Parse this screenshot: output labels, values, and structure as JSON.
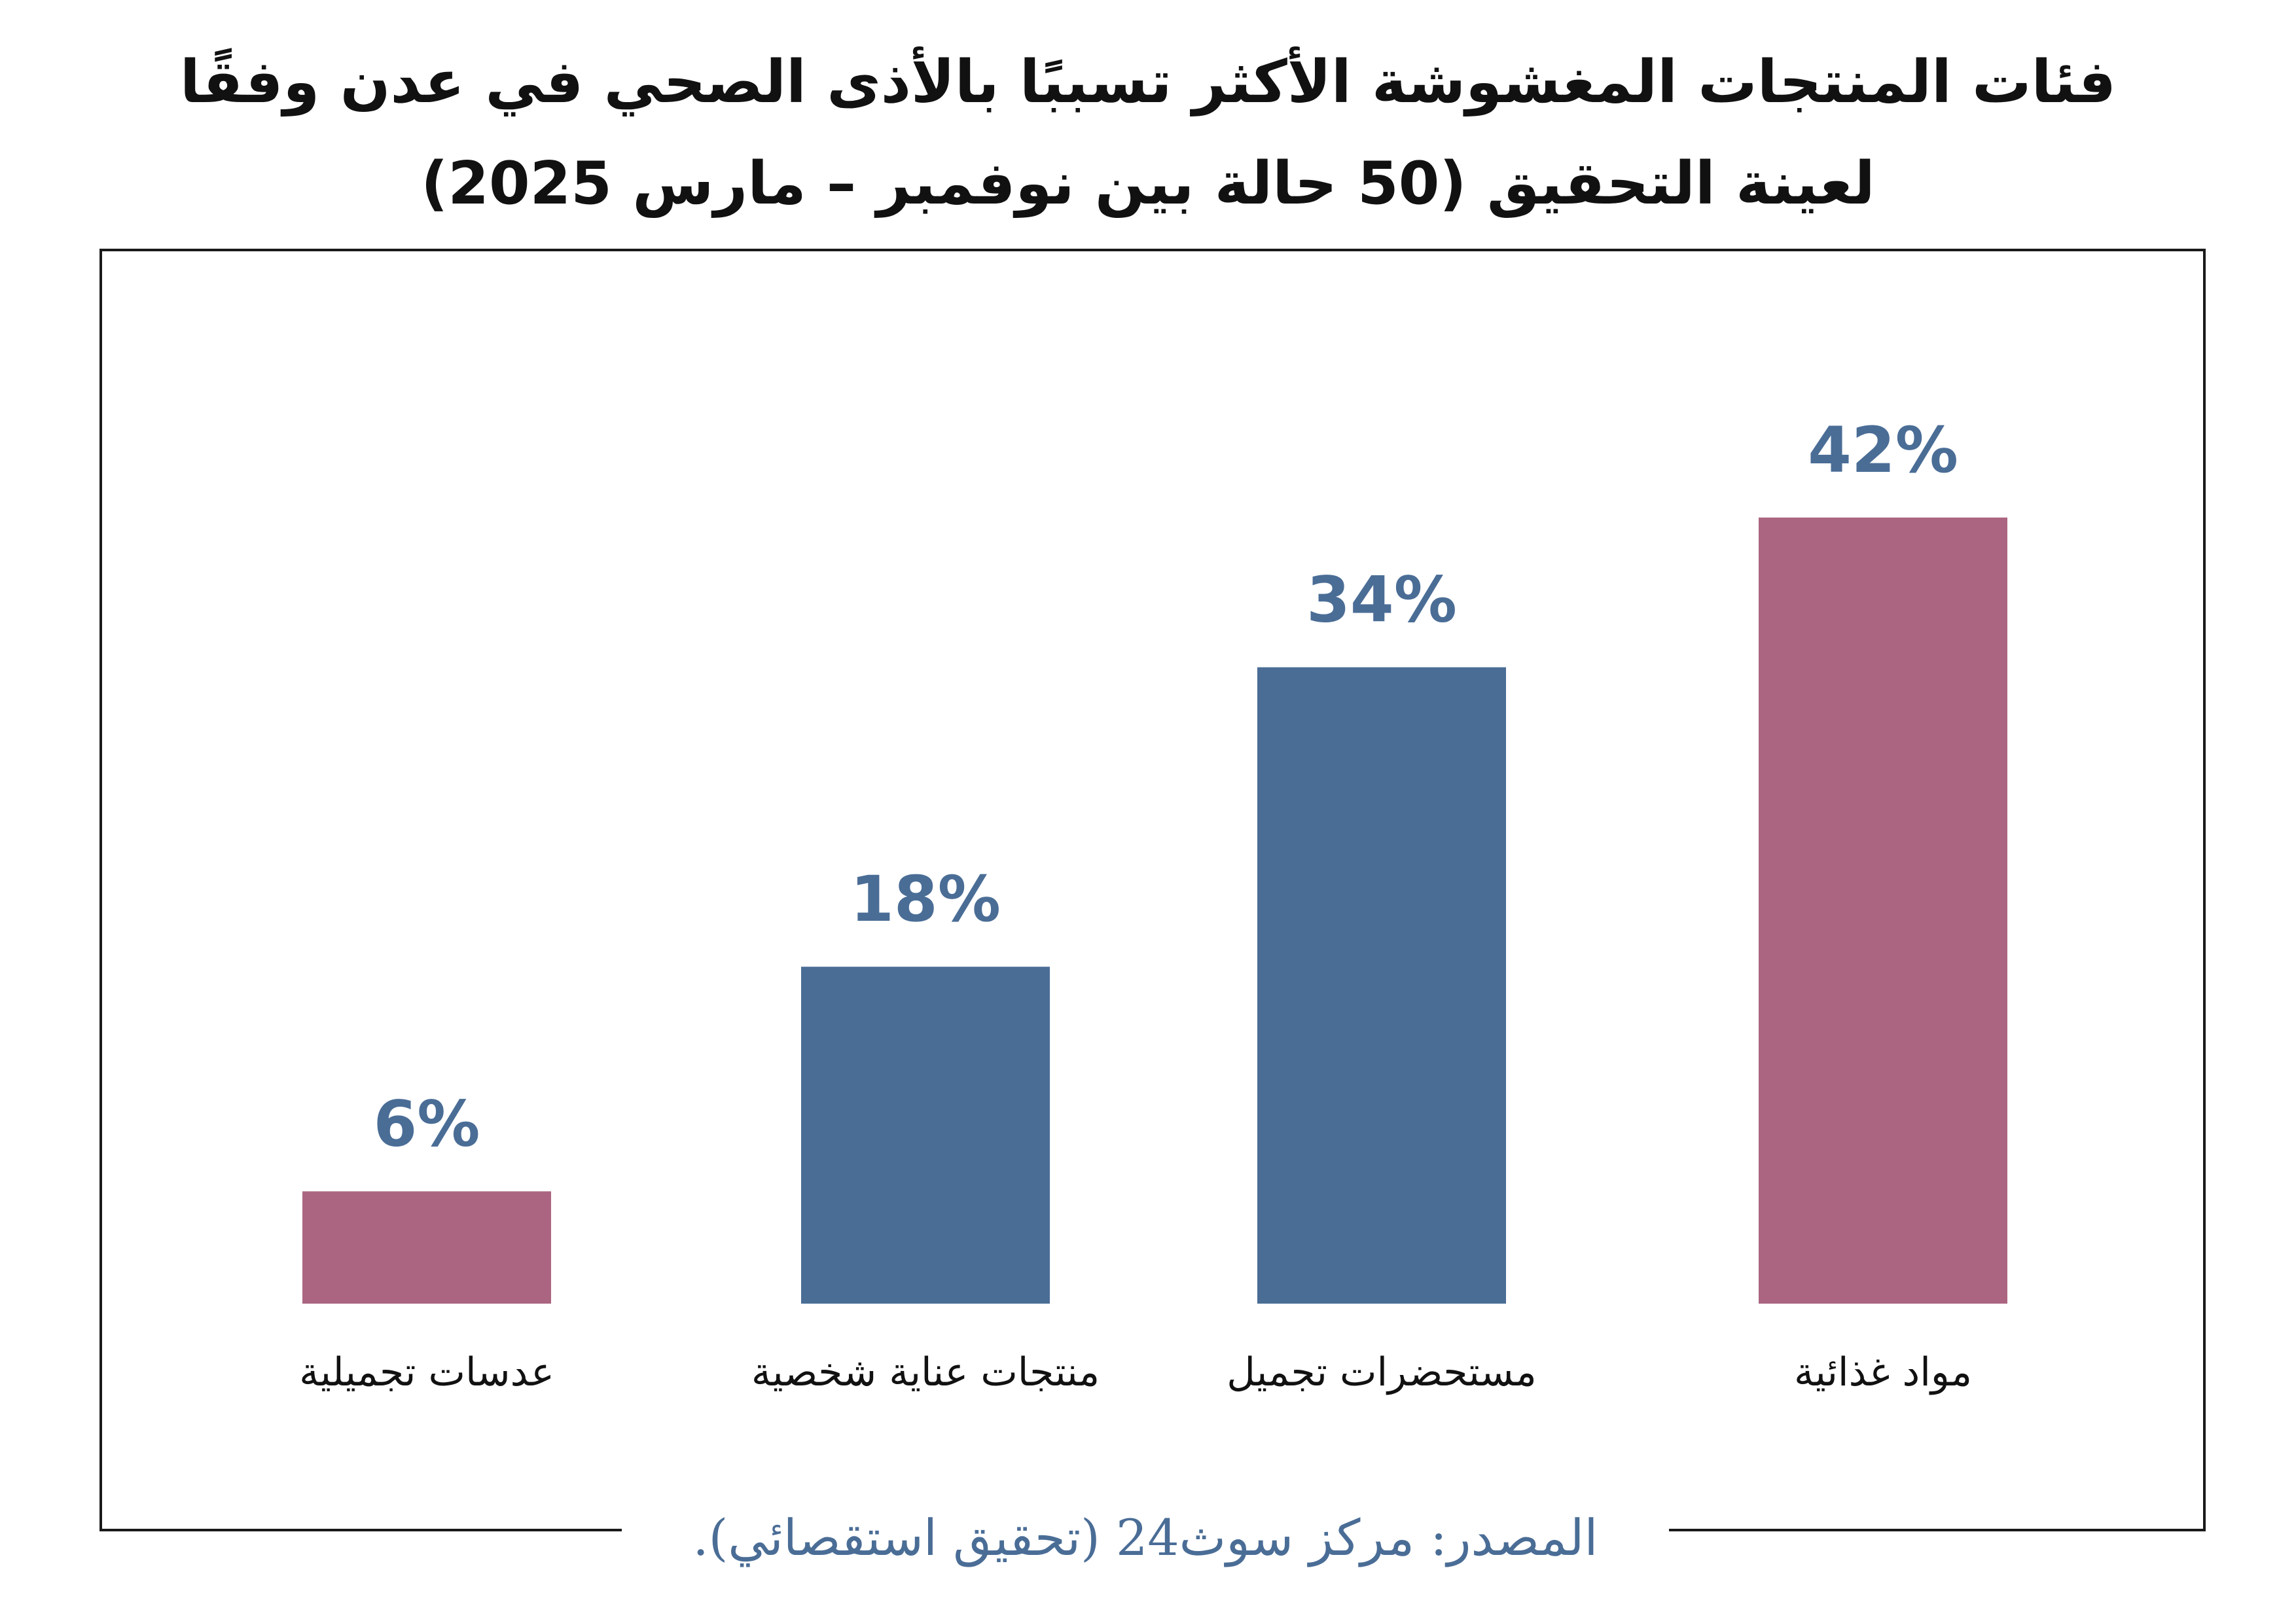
{
  "title": "فئات المنتجات المغشوشة الأكثر تسببًا بالأذى الصحي في عدن وفقًا لعينة التحقيق (50 حالة بين نوفمبر – مارس 2025)",
  "source": "المصدر: مركز سوث24 (تحقيق استقصائي).",
  "colors": {
    "rose": "#ab6580",
    "blue": "#4a6d96",
    "source_text": "#4a6d96",
    "frame": "#1a1a1a"
  },
  "chart_data": {
    "type": "bar",
    "title": "فئات المنتجات المغشوشة الأكثر تسببًا بالأذى الصحي في عدن وفقًا لعينة التحقيق (50 حالة بين نوفمبر – مارس 2025)",
    "categories": [
      "عدسات تجميلية",
      "منتجات عناية شخصية",
      "مستحضرات تجميل",
      "مواد غذائية"
    ],
    "values": [
      6,
      18,
      34,
      42
    ],
    "data_labels": [
      "6%",
      "18%",
      "34%",
      "42%"
    ],
    "bar_colors": [
      "#ab6580",
      "#4a6d96",
      "#4a6d96",
      "#ab6580"
    ],
    "label_color": "#4a6d96",
    "ylim": [
      0,
      50
    ],
    "grid": false,
    "legend": "none",
    "xlabel": "",
    "ylabel": ""
  }
}
